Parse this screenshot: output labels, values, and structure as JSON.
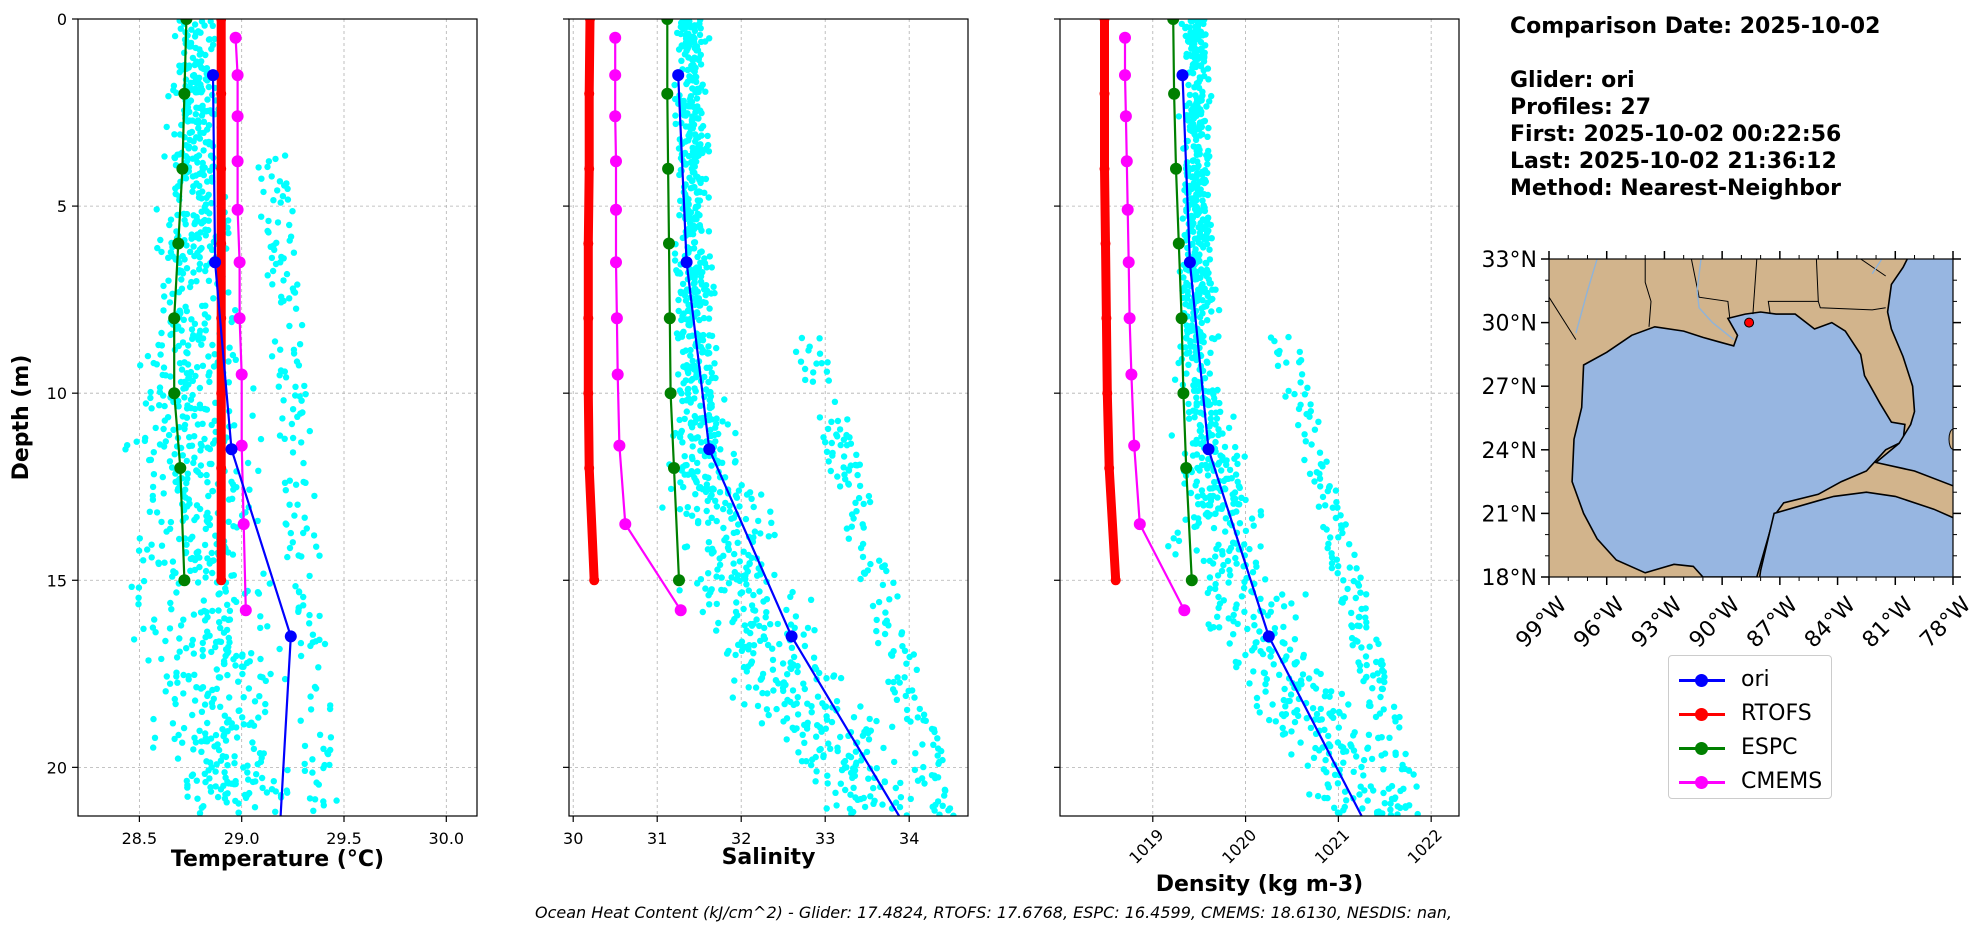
{
  "info": {
    "comparison_date": "Comparison Date: 2025-10-02",
    "glider": "Glider: ori",
    "profiles": "Profiles: 27",
    "first": "First: 2025-10-02 00:22:56",
    "last": "Last: 2025-10-02 21:36:12",
    "method": "Method: Nearest-Neighbor"
  },
  "footer": "Ocean Heat Content (kJ/cm^2) - Glider: 17.4824,  RTOFS: 17.6768,  ESPC: 16.4599,  CMEMS: 18.6130,  NESDIS: nan,",
  "legend": [
    {
      "label": "ori",
      "color": "#0000ff"
    },
    {
      "label": "RTOFS",
      "color": "#ff0000"
    },
    {
      "label": "ESPC",
      "color": "#008000"
    },
    {
      "label": "CMEMS",
      "color": "#ff00ff"
    }
  ],
  "colors": {
    "scatter": "#00ffff",
    "ori": "#0000ff",
    "rtofs": "#ff0000",
    "espc": "#008000",
    "cmems": "#ff00ff"
  },
  "map": {
    "lat_ticks": [
      "33°N",
      "30°N",
      "27°N",
      "24°N",
      "21°N",
      "18°N"
    ],
    "lon_ticks": [
      "99°W",
      "96°W",
      "93°W",
      "90°W",
      "87°W",
      "84°W",
      "81°W",
      "78°W"
    ],
    "extent": {
      "lon": [
        -99,
        -78
      ],
      "lat": [
        18,
        33
      ]
    },
    "glider_location": {
      "lon": -88.6,
      "lat": 30.0
    },
    "land_color": "#d2b48c",
    "ocean_color": "#97b6e1"
  },
  "chart_data": [
    {
      "type": "line",
      "xlabel": "Temperature (°C)",
      "ylabel": "Depth (m)",
      "xlim": [
        28.2,
        30.15
      ],
      "ylim": [
        21.3,
        0
      ],
      "xticks": [
        "28.5",
        "29.0",
        "29.5",
        "30.0"
      ],
      "xtick_values": [
        28.5,
        29.0,
        29.5,
        30.0
      ],
      "yticks": [
        "0",
        "5",
        "10",
        "15",
        "20"
      ],
      "ytick_values": [
        0,
        5,
        10,
        15,
        20
      ],
      "grid": true,
      "scatter_center": [
        [
          0,
          28.78
        ],
        [
          5,
          28.76
        ],
        [
          10,
          28.75
        ],
        [
          15,
          28.8
        ],
        [
          21.3,
          28.95
        ]
      ],
      "scatter_spread": [
        [
          0,
          0.08
        ],
        [
          5,
          0.12
        ],
        [
          10,
          0.2
        ],
        [
          15,
          0.25
        ],
        [
          21.3,
          0.25
        ]
      ],
      "extra_bands": [
        {
          "depth": [
            3.5,
            21.3
          ],
          "center": [
            29.15,
            29.4
          ],
          "spread": 0.08
        }
      ],
      "series": [
        {
          "name": "ori",
          "color": "#0000ff",
          "depth": [
            1.5,
            6.5,
            11.5,
            16.5,
            21.3
          ],
          "values": [
            28.86,
            28.87,
            28.95,
            29.24,
            29.19
          ],
          "markers_upto": 4
        },
        {
          "name": "RTOFS",
          "color": "#ff0000",
          "thick": true,
          "depth": [
            0,
            2,
            4,
            6,
            8,
            10,
            12,
            15
          ],
          "values": [
            28.9,
            28.9,
            28.9,
            28.9,
            28.9,
            28.9,
            28.9,
            28.9
          ]
        },
        {
          "name": "ESPC",
          "color": "#008000",
          "depth": [
            0,
            2,
            4,
            6,
            8,
            10,
            12,
            15
          ],
          "values": [
            28.73,
            28.72,
            28.71,
            28.69,
            28.67,
            28.67,
            28.7,
            28.72
          ]
        },
        {
          "name": "CMEMS",
          "color": "#ff00ff",
          "depth": [
            0.5,
            1.5,
            2.6,
            3.8,
            5.1,
            6.5,
            8,
            9.5,
            11.4,
            13.5,
            15.8
          ],
          "values": [
            28.97,
            28.98,
            28.98,
            28.98,
            28.98,
            28.99,
            28.99,
            29.0,
            29.0,
            29.01,
            29.02
          ]
        }
      ]
    },
    {
      "type": "line",
      "xlabel": "Salinity",
      "ylabel": "",
      "xlim": [
        29.95,
        34.7
      ],
      "ylim": [
        21.3,
        0
      ],
      "xticks": [
        "30",
        "31",
        "32",
        "33",
        "34"
      ],
      "xtick_values": [
        30,
        31,
        32,
        33,
        34
      ],
      "yticks": [],
      "ytick_values": [
        0,
        5,
        10,
        15,
        20
      ],
      "grid": true,
      "scatter_center": [
        [
          0,
          31.4
        ],
        [
          5,
          31.42
        ],
        [
          10,
          31.45
        ],
        [
          15,
          31.9
        ],
        [
          21.3,
          33.7
        ]
      ],
      "scatter_spread": [
        [
          0,
          0.15
        ],
        [
          5,
          0.15
        ],
        [
          10,
          0.22
        ],
        [
          15,
          0.55
        ],
        [
          21.3,
          0.6
        ]
      ],
      "extra_bands": [
        {
          "depth": [
            8.5,
            21.3
          ],
          "center": [
            32.8,
            34.4
          ],
          "spread": 0.2
        }
      ],
      "series": [
        {
          "name": "ori",
          "color": "#0000ff",
          "depth": [
            1.5,
            6.5,
            11.5,
            16.5,
            21.3
          ],
          "values": [
            31.25,
            31.35,
            31.62,
            32.6,
            33.88
          ],
          "markers_upto": 4
        },
        {
          "name": "RTOFS",
          "color": "#ff0000",
          "thick": true,
          "depth": [
            0,
            2,
            4,
            6,
            8,
            10,
            12,
            15
          ],
          "values": [
            30.2,
            30.19,
            30.19,
            30.18,
            30.18,
            30.18,
            30.19,
            30.25
          ]
        },
        {
          "name": "ESPC",
          "color": "#008000",
          "depth": [
            0,
            2,
            4,
            6,
            8,
            10,
            12,
            15
          ],
          "values": [
            31.12,
            31.12,
            31.13,
            31.14,
            31.15,
            31.16,
            31.2,
            31.26
          ]
        },
        {
          "name": "CMEMS",
          "color": "#ff00ff",
          "depth": [
            0.5,
            1.5,
            2.6,
            3.8,
            5.1,
            6.5,
            8,
            9.5,
            11.4,
            13.5,
            15.8
          ],
          "values": [
            30.5,
            30.5,
            30.5,
            30.51,
            30.51,
            30.51,
            30.52,
            30.53,
            30.55,
            30.62,
            31.28
          ]
        }
      ]
    },
    {
      "type": "line",
      "xlabel": "Density (kg m-3)",
      "ylabel": "",
      "xlim": [
        1018.0,
        1022.3
      ],
      "ylim": [
        21.3,
        0
      ],
      "xticks": [
        "1019",
        "1020",
        "1021",
        "1022"
      ],
      "xtick_values": [
        1019,
        1020,
        1021,
        1022
      ],
      "yticks": [],
      "ytick_values": [
        0,
        5,
        10,
        15,
        20
      ],
      "grid": true,
      "scatter_center": [
        [
          0,
          1019.45
        ],
        [
          5,
          1019.47
        ],
        [
          10,
          1019.5
        ],
        [
          15,
          1019.85
        ],
        [
          21.3,
          1021.4
        ]
      ],
      "scatter_spread": [
        [
          0,
          0.12
        ],
        [
          5,
          0.13
        ],
        [
          10,
          0.18
        ],
        [
          15,
          0.45
        ],
        [
          21.3,
          0.45
        ]
      ],
      "extra_bands": [
        {
          "depth": [
            8.5,
            21.3
          ],
          "center": [
            1020.4,
            1021.8
          ],
          "spread": 0.15
        }
      ],
      "series": [
        {
          "name": "ori",
          "color": "#0000ff",
          "depth": [
            1.5,
            6.5,
            11.5,
            16.5,
            21.3
          ],
          "values": [
            1019.32,
            1019.4,
            1019.6,
            1020.25,
            1021.25
          ],
          "markers_upto": 4
        },
        {
          "name": "RTOFS",
          "color": "#ff0000",
          "thick": true,
          "depth": [
            0,
            2,
            4,
            6,
            8,
            10,
            12,
            15
          ],
          "values": [
            1018.48,
            1018.48,
            1018.48,
            1018.49,
            1018.5,
            1018.51,
            1018.53,
            1018.6
          ]
        },
        {
          "name": "ESPC",
          "color": "#008000",
          "depth": [
            0,
            2,
            4,
            6,
            8,
            10,
            12,
            15
          ],
          "values": [
            1019.22,
            1019.23,
            1019.25,
            1019.28,
            1019.31,
            1019.33,
            1019.36,
            1019.42
          ]
        },
        {
          "name": "CMEMS",
          "color": "#ff00ff",
          "depth": [
            0.5,
            1.5,
            2.6,
            3.8,
            5.1,
            6.5,
            8,
            9.5,
            11.4,
            13.5,
            15.8
          ],
          "values": [
            1018.7,
            1018.7,
            1018.71,
            1018.72,
            1018.73,
            1018.74,
            1018.75,
            1018.77,
            1018.8,
            1018.86,
            1019.34
          ]
        }
      ]
    }
  ]
}
